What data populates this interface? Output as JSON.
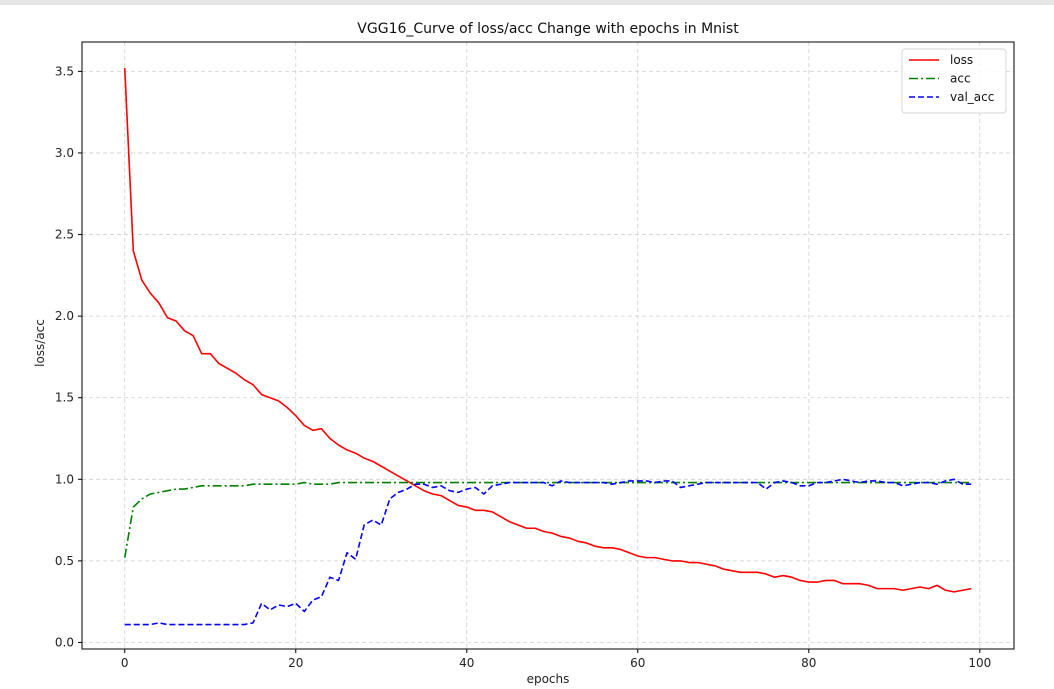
{
  "chart_data": {
    "type": "line",
    "title": "VGG16_Curve of loss/acc Change with epochs in Mnist",
    "xlabel": "epochs",
    "ylabel": "loss/acc",
    "xlim": [
      -5,
      104
    ],
    "ylim": [
      -0.04,
      3.68
    ],
    "xticks": [
      0,
      20,
      40,
      60,
      80,
      100
    ],
    "yticks": [
      0.0,
      0.5,
      1.0,
      1.5,
      2.0,
      2.5,
      3.0,
      3.5
    ],
    "xtick_labels": [
      "0",
      "20",
      "40",
      "60",
      "80",
      "100"
    ],
    "ytick_labels": [
      "0.0",
      "0.5",
      "1.0",
      "1.5",
      "2.0",
      "2.5",
      "3.0",
      "3.5"
    ],
    "grid": true,
    "legend_position": "top-right",
    "series": [
      {
        "name": "loss",
        "color": "#ff0000",
        "style": "solid",
        "values": [
          3.52,
          2.4,
          2.22,
          2.14,
          2.08,
          1.99,
          1.97,
          1.91,
          1.88,
          1.77,
          1.77,
          1.71,
          1.68,
          1.65,
          1.61,
          1.58,
          1.52,
          1.5,
          1.48,
          1.44,
          1.39,
          1.33,
          1.3,
          1.31,
          1.25,
          1.21,
          1.18,
          1.16,
          1.13,
          1.11,
          1.08,
          1.05,
          1.02,
          0.99,
          0.96,
          0.93,
          0.91,
          0.9,
          0.87,
          0.84,
          0.83,
          0.81,
          0.81,
          0.8,
          0.77,
          0.74,
          0.72,
          0.7,
          0.7,
          0.68,
          0.67,
          0.65,
          0.64,
          0.62,
          0.61,
          0.59,
          0.58,
          0.58,
          0.57,
          0.55,
          0.53,
          0.52,
          0.52,
          0.51,
          0.5,
          0.5,
          0.49,
          0.49,
          0.48,
          0.47,
          0.45,
          0.44,
          0.43,
          0.43,
          0.43,
          0.42,
          0.4,
          0.41,
          0.4,
          0.38,
          0.37,
          0.37,
          0.38,
          0.38,
          0.36,
          0.36,
          0.36,
          0.35,
          0.33,
          0.33,
          0.33,
          0.32,
          0.33,
          0.34,
          0.33,
          0.35,
          0.32,
          0.31,
          0.32,
          0.33
        ]
      },
      {
        "name": "acc",
        "color": "#008000",
        "style": "dashdot",
        "values": [
          0.52,
          0.83,
          0.88,
          0.91,
          0.92,
          0.93,
          0.94,
          0.94,
          0.95,
          0.96,
          0.96,
          0.96,
          0.96,
          0.96,
          0.96,
          0.97,
          0.97,
          0.97,
          0.97,
          0.97,
          0.97,
          0.98,
          0.97,
          0.97,
          0.97,
          0.98,
          0.98,
          0.98,
          0.98,
          0.98,
          0.98,
          0.98,
          0.98,
          0.98,
          0.98,
          0.98,
          0.98,
          0.98,
          0.98,
          0.98,
          0.98,
          0.98,
          0.98,
          0.98,
          0.98,
          0.98,
          0.98,
          0.98,
          0.98,
          0.98,
          0.98,
          0.98,
          0.98,
          0.98,
          0.98,
          0.98,
          0.98,
          0.98,
          0.98,
          0.98,
          0.98,
          0.98,
          0.98,
          0.98,
          0.98,
          0.98,
          0.98,
          0.98,
          0.98,
          0.98,
          0.98,
          0.98,
          0.98,
          0.98,
          0.98,
          0.98,
          0.98,
          0.98,
          0.98,
          0.98,
          0.98,
          0.98,
          0.98,
          0.98,
          0.98,
          0.98,
          0.98,
          0.98,
          0.98,
          0.98,
          0.98,
          0.98,
          0.98,
          0.98,
          0.98,
          0.98,
          0.98,
          0.98,
          0.98,
          0.98
        ]
      },
      {
        "name": "val_acc",
        "color": "#0000ff",
        "style": "dashed",
        "values": [
          0.11,
          0.11,
          0.11,
          0.11,
          0.12,
          0.11,
          0.11,
          0.11,
          0.11,
          0.11,
          0.11,
          0.11,
          0.11,
          0.11,
          0.11,
          0.12,
          0.24,
          0.2,
          0.23,
          0.22,
          0.24,
          0.19,
          0.26,
          0.28,
          0.4,
          0.38,
          0.55,
          0.51,
          0.72,
          0.75,
          0.72,
          0.88,
          0.92,
          0.94,
          0.97,
          0.97,
          0.95,
          0.96,
          0.93,
          0.92,
          0.94,
          0.95,
          0.91,
          0.96,
          0.97,
          0.98,
          0.98,
          0.98,
          0.98,
          0.98,
          0.96,
          0.99,
          0.98,
          0.98,
          0.98,
          0.98,
          0.98,
          0.97,
          0.98,
          0.99,
          0.99,
          0.99,
          0.98,
          0.99,
          0.99,
          0.95,
          0.96,
          0.97,
          0.98,
          0.98,
          0.98,
          0.98,
          0.98,
          0.98,
          0.98,
          0.94,
          0.98,
          0.99,
          0.98,
          0.96,
          0.96,
          0.98,
          0.98,
          0.99,
          1.0,
          0.99,
          0.98,
          0.99,
          0.99,
          0.98,
          0.98,
          0.96,
          0.97,
          0.98,
          0.98,
          0.97,
          0.99,
          1.0,
          0.97,
          0.97
        ]
      }
    ]
  }
}
